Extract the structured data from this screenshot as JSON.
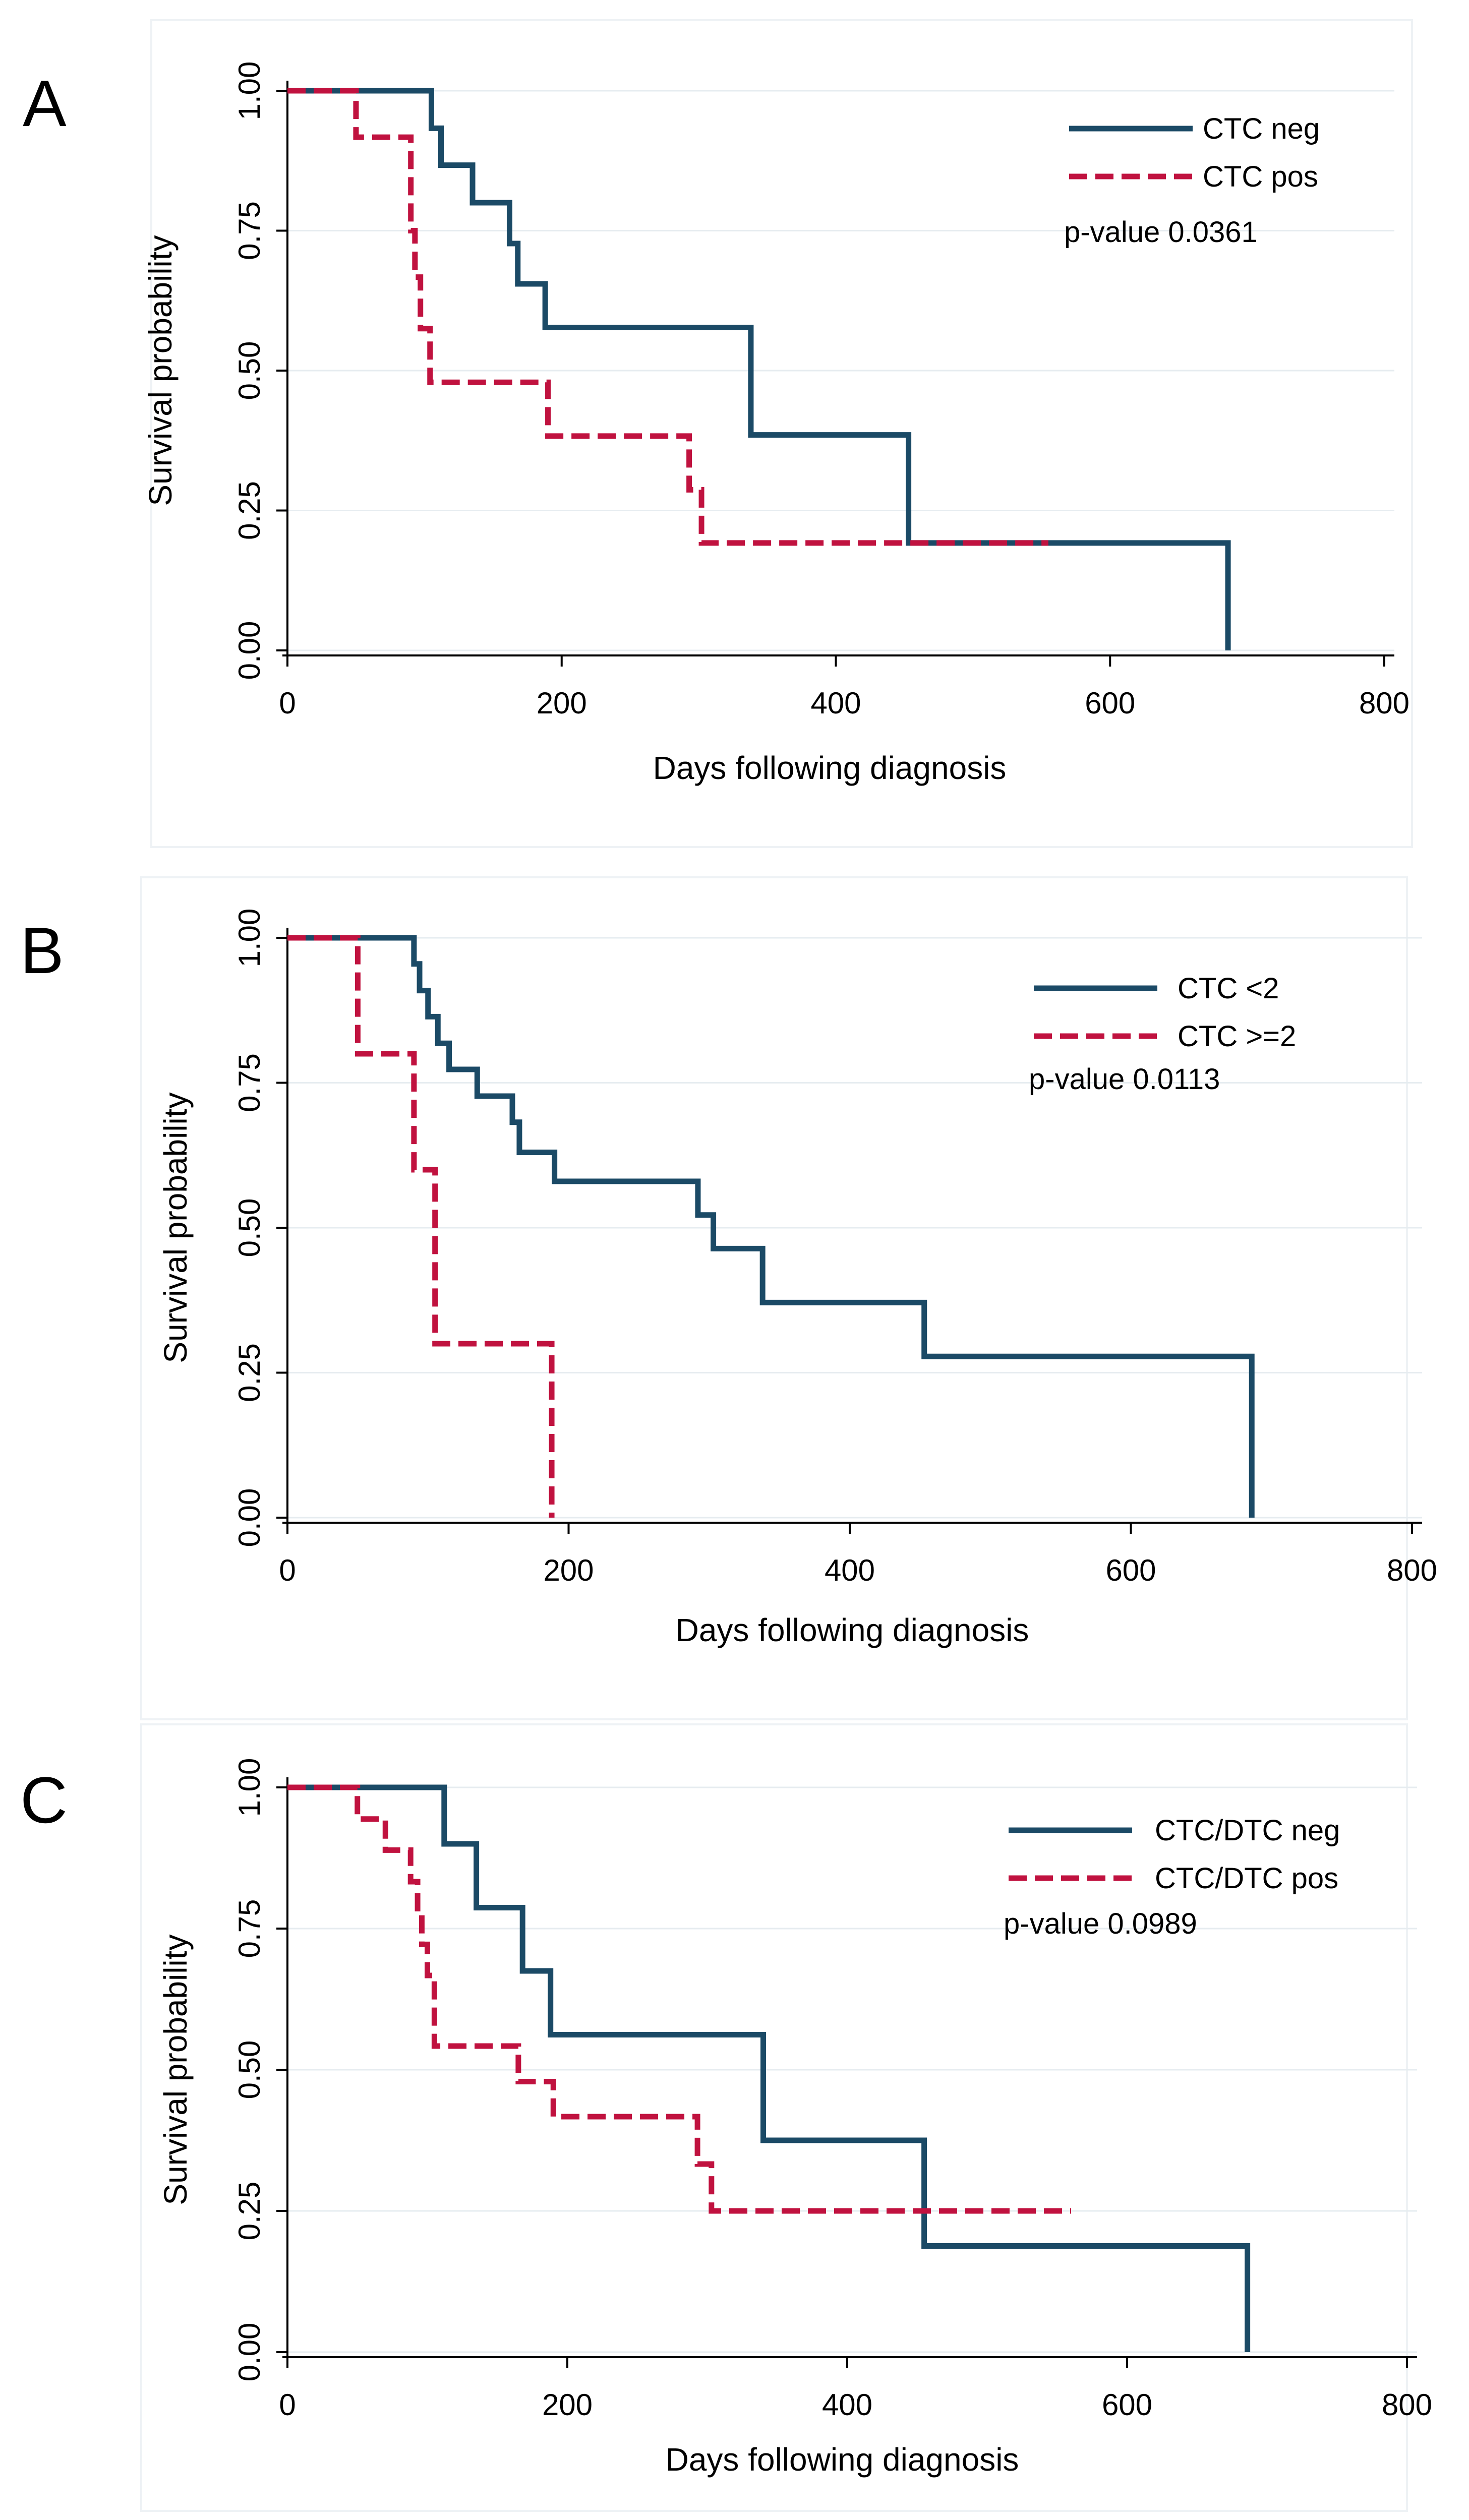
{
  "chart_data": [
    {
      "panel": "A",
      "type": "line",
      "xlabel": "Days following diagnosis",
      "ylabel": "Survival probability",
      "xlim": [
        0,
        800
      ],
      "ylim": [
        0,
        1
      ],
      "xticks": [
        "0",
        "200",
        "400",
        "600",
        "800"
      ],
      "yticks": [
        "0.00",
        "0.25",
        "0.50",
        "0.75",
        "1.00"
      ],
      "p_value": "p-value 0.0361",
      "legend_position": "top-right",
      "series": [
        {
          "name": "CTC neg",
          "style": "solid",
          "color": "#1b4a66",
          "steps": [
            [
              0,
              1
            ],
            [
              105,
              0.933
            ],
            [
              112,
              0.867
            ],
            [
              135,
              0.8
            ],
            [
              162,
              0.727
            ],
            [
              168,
              0.655
            ],
            [
              188,
              0.577
            ],
            [
              338,
              0.385
            ],
            [
              453,
              0.192
            ],
            [
              686,
              0
            ]
          ],
          "end": 686
        },
        {
          "name": "CTC pos",
          "style": "dashed",
          "color": "#c0123f",
          "steps": [
            [
              0,
              1
            ],
            [
              50,
              0.917
            ],
            [
              90,
              0.75
            ],
            [
              93,
              0.667
            ],
            [
              97,
              0.575
            ],
            [
              104,
              0.479
            ],
            [
              190,
              0.383
            ],
            [
              293,
              0.287
            ],
            [
              302,
              0.192
            ]
          ],
          "end": 555
        }
      ]
    },
    {
      "panel": "B",
      "type": "line",
      "xlabel": "Days following diagnosis",
      "ylabel": "Survival probability",
      "xlim": [
        0,
        800
      ],
      "ylim": [
        0,
        1
      ],
      "xticks": [
        "0",
        "200",
        "400",
        "600",
        "800"
      ],
      "yticks": [
        "0.00",
        "0.25",
        "0.50",
        "0.75",
        "1.00"
      ],
      "p_value": "p-value 0.0113",
      "legend_position": "top-right",
      "series": [
        {
          "name": "CTC <2",
          "style": "solid",
          "color": "#1b4a66",
          "steps": [
            [
              0,
              1
            ],
            [
              90,
              0.955
            ],
            [
              94,
              0.909
            ],
            [
              100,
              0.864
            ],
            [
              107,
              0.818
            ],
            [
              115,
              0.773
            ],
            [
              135,
              0.727
            ],
            [
              160,
              0.682
            ],
            [
              165,
              0.63
            ],
            [
              190,
              0.58
            ],
            [
              292,
              0.522
            ],
            [
              303,
              0.464
            ],
            [
              338,
              0.371
            ],
            [
              453,
              0.278
            ],
            [
              686,
              0
            ]
          ],
          "end": 686
        },
        {
          "name": "CTC >=2",
          "style": "dashed",
          "color": "#c0123f",
          "steps": [
            [
              0,
              1
            ],
            [
              50,
              0.8
            ],
            [
              90,
              0.6
            ],
            [
              105,
              0.3
            ],
            [
              188,
              0
            ]
          ],
          "end": 188
        }
      ]
    },
    {
      "panel": "C",
      "type": "line",
      "xlabel": "Days following diagnosis",
      "ylabel": "Survival probability",
      "xlim": [
        0,
        800
      ],
      "ylim": [
        0,
        1
      ],
      "xticks": [
        "0",
        "200",
        "400",
        "600",
        "800"
      ],
      "yticks": [
        "0.00",
        "0.25",
        "0.50",
        "0.75",
        "1.00"
      ],
      "p_value": "p-value 0.0989",
      "legend_position": "top-right",
      "series": [
        {
          "name": "CTC/DTC neg",
          "style": "solid",
          "color": "#1b4a66",
          "steps": [
            [
              0,
              1
            ],
            [
              112,
              0.9
            ],
            [
              135,
              0.787
            ],
            [
              168,
              0.675
            ],
            [
              188,
              0.562
            ],
            [
              340,
              0.375
            ],
            [
              455,
              0.188
            ],
            [
              686,
              0
            ]
          ],
          "end": 686
        },
        {
          "name": "CTC/DTC pos",
          "style": "dashed",
          "color": "#c0123f",
          "steps": [
            [
              0,
              1
            ],
            [
              50,
              0.944
            ],
            [
              70,
              0.889
            ],
            [
              88,
              0.833
            ],
            [
              93,
              0.778
            ],
            [
              96,
              0.722
            ],
            [
              100,
              0.667
            ],
            [
              105,
              0.542
            ],
            [
              165,
              0.479
            ],
            [
              190,
              0.417
            ],
            [
              293,
              0.333
            ],
            [
              303,
              0.25
            ]
          ],
          "end": 560
        }
      ]
    }
  ]
}
